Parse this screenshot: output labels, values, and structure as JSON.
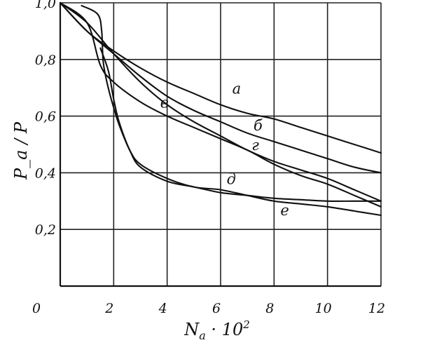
{
  "chart_data": {
    "type": "line",
    "xlabel": "N_a · 10²",
    "xlabel_main": "N",
    "xlabel_sub": "a",
    "xlabel_rest": " · 10",
    "xlabel_sup": "2",
    "ylabel": "P_a / P",
    "xlim": [
      0,
      12
    ],
    "ylim": [
      0,
      1.0
    ],
    "grid": true,
    "x_ticks": [
      "0",
      "2",
      "4",
      "6",
      "8",
      "10",
      "12"
    ],
    "y_ticks": [
      "0,2",
      "0,4",
      "0,6",
      "0,8",
      "1,0"
    ],
    "series": [
      {
        "name": "а",
        "label_at": [
          6.6,
          0.68
        ],
        "points": [
          [
            0,
            1.0
          ],
          [
            1,
            0.9
          ],
          [
            2,
            0.83
          ],
          [
            3,
            0.77
          ],
          [
            4,
            0.72
          ],
          [
            5,
            0.68
          ],
          [
            6,
            0.64
          ],
          [
            7,
            0.61
          ],
          [
            8,
            0.59
          ],
          [
            9,
            0.56
          ],
          [
            10,
            0.53
          ],
          [
            11,
            0.5
          ],
          [
            12,
            0.47
          ]
        ]
      },
      {
        "name": "б",
        "label_at": [
          7.4,
          0.55
        ],
        "points": [
          [
            0,
            1.0
          ],
          [
            1,
            0.9
          ],
          [
            2,
            0.82
          ],
          [
            3,
            0.74
          ],
          [
            4,
            0.67
          ],
          [
            5,
            0.62
          ],
          [
            6,
            0.58
          ],
          [
            7,
            0.54
          ],
          [
            8,
            0.51
          ],
          [
            9,
            0.48
          ],
          [
            10,
            0.45
          ],
          [
            11,
            0.42
          ],
          [
            12,
            0.4
          ]
        ]
      },
      {
        "name": "в",
        "label_at": [
          3.9,
          0.63
        ],
        "points": [
          [
            0,
            1.0
          ],
          [
            1,
            0.93
          ],
          [
            2,
            0.82
          ],
          [
            3,
            0.72
          ],
          [
            4,
            0.64
          ],
          [
            5,
            0.58
          ],
          [
            6,
            0.53
          ],
          [
            7,
            0.48
          ],
          [
            8,
            0.44
          ],
          [
            9,
            0.41
          ],
          [
            10,
            0.38
          ],
          [
            11,
            0.34
          ],
          [
            12,
            0.3
          ]
        ]
      },
      {
        "name": "г",
        "label_at": [
          7.3,
          0.48
        ],
        "points": [
          [
            0,
            1.0
          ],
          [
            1,
            0.93
          ],
          [
            1.5,
            0.78
          ],
          [
            2,
            0.72
          ],
          [
            3,
            0.65
          ],
          [
            4,
            0.6
          ],
          [
            5,
            0.56
          ],
          [
            6,
            0.52
          ],
          [
            7,
            0.48
          ],
          [
            8,
            0.43
          ],
          [
            9,
            0.39
          ],
          [
            10,
            0.36
          ],
          [
            11,
            0.32
          ],
          [
            12,
            0.28
          ]
        ]
      },
      {
        "name": "д",
        "label_at": [
          6.4,
          0.36
        ],
        "points": [
          [
            1.5,
            0.84
          ],
          [
            1.8,
            0.76
          ],
          [
            2.0,
            0.66
          ],
          [
            2.2,
            0.58
          ],
          [
            2.6,
            0.48
          ],
          [
            3,
            0.42
          ],
          [
            4,
            0.37
          ],
          [
            5,
            0.35
          ],
          [
            6,
            0.33
          ],
          [
            7,
            0.32
          ],
          [
            8,
            0.31
          ],
          [
            9,
            0.305
          ],
          [
            10,
            0.3
          ],
          [
            11,
            0.3
          ],
          [
            12,
            0.3
          ]
        ]
      },
      {
        "name": "е",
        "label_at": [
          8.4,
          0.25
        ],
        "points": [
          [
            0.8,
            0.99
          ],
          [
            1.4,
            0.96
          ],
          [
            1.55,
            0.9
          ],
          [
            1.6,
            0.8
          ],
          [
            1.7,
            0.74
          ],
          [
            1.85,
            0.68
          ],
          [
            2.0,
            0.63
          ],
          [
            2.2,
            0.57
          ],
          [
            2.6,
            0.48
          ],
          [
            3,
            0.43
          ],
          [
            4,
            0.38
          ],
          [
            5,
            0.35
          ],
          [
            6,
            0.34
          ],
          [
            7,
            0.32
          ],
          [
            8,
            0.3
          ],
          [
            9,
            0.29
          ],
          [
            10,
            0.28
          ],
          [
            11,
            0.265
          ],
          [
            12,
            0.25
          ]
        ]
      }
    ]
  }
}
